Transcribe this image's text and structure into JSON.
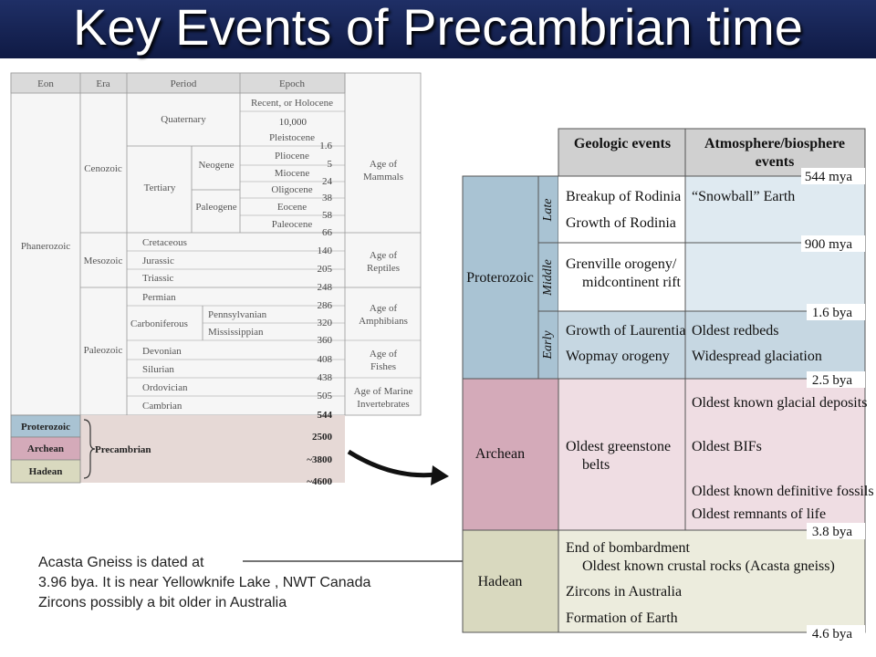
{
  "title": "Key Events of Precambrian time",
  "left_table": {
    "headers": [
      "Eon",
      "Era",
      "Period",
      "Epoch"
    ],
    "eons": [
      "Phanerozoic",
      "Proterozoic",
      "Archean",
      "Hadean"
    ],
    "precambrian_label": "Precambrian",
    "eras": [
      "Cenozoic",
      "Mesozoic",
      "Paleozoic"
    ],
    "periods": [
      "Quaternary",
      "Tertiary",
      "Neogene",
      "Paleogene",
      "Cretaceous",
      "Jurassic",
      "Triassic",
      "Permian",
      "Carboniferous",
      "Pennsylvanian",
      "Mississippian",
      "Devonian",
      "Silurian",
      "Ordovician",
      "Cambrian"
    ],
    "epochs": [
      "Recent, or Holocene",
      "Pleistocene",
      "Pliocene",
      "Miocene",
      "Oligocene",
      "Eocene",
      "Paleocene"
    ],
    "ages": [
      "Age of Mammals",
      "Age of Reptiles",
      "Age of Amphibians",
      "Age of Fishes",
      "Age of Marine Invertebrates"
    ],
    "boundaries": [
      "10,000",
      "1.6",
      "5",
      "24",
      "38",
      "58",
      "66",
      "140",
      "205",
      "248",
      "286",
      "320",
      "360",
      "408",
      "438",
      "505",
      "544",
      "2500",
      "~3800",
      "~4600"
    ]
  },
  "right_table": {
    "header_events": "Geologic events",
    "header_atmosphere": [
      "Atmosphere/biosphere",
      "events"
    ],
    "subdivisions": [
      "Late",
      "Middle",
      "Early"
    ],
    "eons": [
      "Proterozoic",
      "Archean",
      "Hadean"
    ],
    "boundaries": [
      "544 mya",
      "900 mya",
      "1.6 bya",
      "2.5 bya",
      "3.8 bya",
      "4.6 bya"
    ],
    "late_events": [
      "Breakup of Rodinia",
      "Growth of Rodinia"
    ],
    "late_atmo": [
      "“Snowball” Earth"
    ],
    "middle_events": [
      "Grenville orogeny/",
      "midcontinent rift"
    ],
    "early_events": [
      "Growth of Laurentia",
      "Wopmay orogeny"
    ],
    "early_atmo": [
      "Oldest redbeds",
      "Widespread glaciation"
    ],
    "archean_events": [
      "Oldest greenstone",
      "belts"
    ],
    "archean_atmo": [
      "Oldest known glacial deposits",
      "Oldest BIFs",
      "Oldest known definitive fossils",
      "Oldest remnants of life"
    ],
    "hadean_events": [
      "End of bombardment",
      "Oldest known crustal rocks (Acasta gneiss)",
      "Zircons in Australia",
      "Formation of Earth"
    ]
  },
  "note": [
    "Acasta Gneiss is dated at",
    "3.96 bya.  It is near Yellowknife Lake , NWT Canada",
    "Zircons possibly a bit older in Australia"
  ],
  "colors": {
    "title_bg": "#1f2f66",
    "proterozoic": "#a9c3d3",
    "proterozoic_right": "#dfeaf1",
    "archean": "#d4aab9",
    "archean_right": "#efdde3",
    "hadean": "#d9d9bf",
    "hadean_right": "#ececdd",
    "precambrian_band": "#e6d9d6",
    "header_gray": "#d0d0d0"
  }
}
